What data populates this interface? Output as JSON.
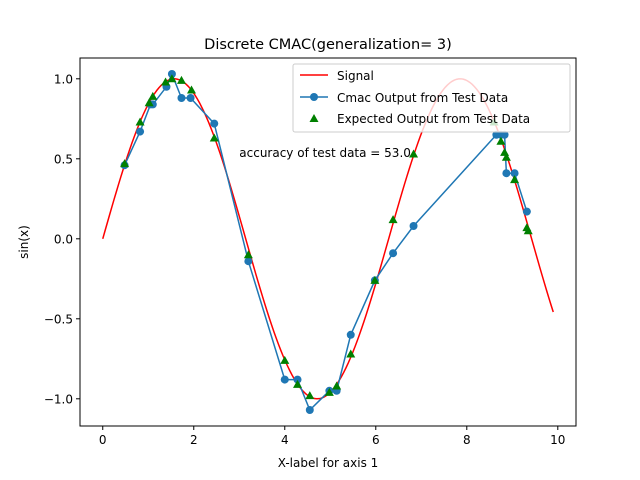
{
  "chart_data": {
    "type": "line",
    "title": "Discrete CMAC(generalization= 3)",
    "xlabel": "X-label for axis 1",
    "ylabel": "sin(x)",
    "xlim": [
      -0.5,
      10.4
    ],
    "ylim": [
      -1.17,
      1.13
    ],
    "xticks": [
      0,
      2,
      4,
      6,
      8,
      10
    ],
    "yticks": [
      -1.0,
      -0.5,
      0.0,
      0.5,
      1.0
    ],
    "xtick_labels": [
      "0",
      "2",
      "4",
      "6",
      "8",
      "10"
    ],
    "ytick_labels": [
      "−1.0",
      "−0.5",
      "0.0",
      "0.5",
      "1.0"
    ],
    "grid": false,
    "legend_position": "top-right",
    "annotation": {
      "text": "accuracy of test data =  53.0",
      "x": 3.0,
      "y": 0.51
    },
    "series": [
      {
        "name": "Signal",
        "kind": "line",
        "color": "#ff0000",
        "function": "sin",
        "x_start": 0.0,
        "x_end": 9.9
      },
      {
        "name": "Cmac Output from Test Data",
        "kind": "line-marker",
        "color": "#1f77b4",
        "x": [
          0.48,
          0.82,
          1.05,
          1.1,
          1.4,
          1.52,
          1.73,
          1.93,
          2.45,
          3.2,
          4.0,
          4.28,
          4.55,
          4.98,
          5.14,
          5.45,
          5.98,
          6.38,
          6.83,
          8.65,
          8.75,
          8.83,
          8.87,
          9.05,
          9.32
        ],
        "y": [
          0.46,
          0.67,
          0.84,
          0.84,
          0.95,
          1.03,
          0.88,
          0.88,
          0.72,
          -0.14,
          -0.88,
          -0.88,
          -1.07,
          -0.95,
          -0.95,
          -0.6,
          -0.26,
          -0.09,
          0.08,
          0.65,
          0.65,
          0.65,
          0.41,
          0.41,
          0.17
        ]
      },
      {
        "name": "Expected Output from Test Data",
        "kind": "marker",
        "color": "#008000",
        "x": [
          0.48,
          0.82,
          1.02,
          1.1,
          1.38,
          1.52,
          1.73,
          1.95,
          2.45,
          3.2,
          4.0,
          4.28,
          4.55,
          4.98,
          5.14,
          5.45,
          5.98,
          6.38,
          6.83,
          8.6,
          8.75,
          8.83,
          8.87,
          9.05,
          9.32,
          9.35
        ],
        "y": [
          0.47,
          0.73,
          0.85,
          0.89,
          0.98,
          1.0,
          0.99,
          0.93,
          0.63,
          -0.1,
          -0.76,
          -0.91,
          -0.98,
          -0.96,
          -0.92,
          -0.72,
          -0.26,
          0.12,
          0.53,
          0.73,
          0.61,
          0.54,
          0.51,
          0.37,
          0.07,
          0.05
        ]
      }
    ]
  }
}
